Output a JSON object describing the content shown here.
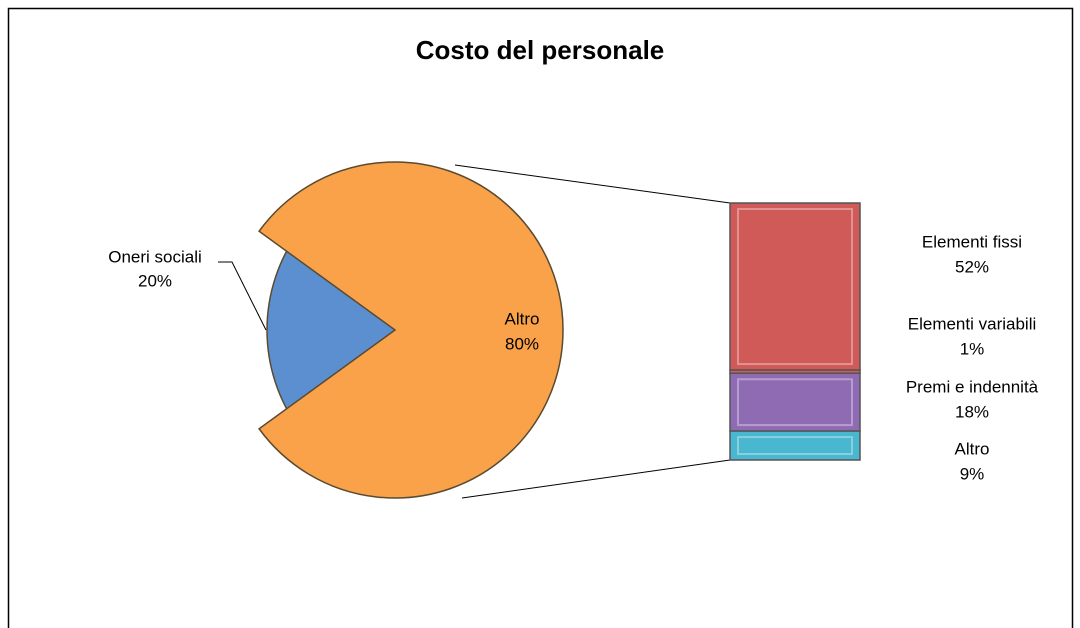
{
  "chart_data": {
    "type": "bar_of_pie",
    "title": "Costo del personale",
    "pie": {
      "categories": [
        "Oneri sociali",
        "Altro"
      ],
      "values": [
        20,
        80
      ],
      "value_labels": [
        "20%",
        "80%"
      ],
      "colors": [
        "#5b8fd0",
        "#f9a24a"
      ]
    },
    "bar": {
      "categories": [
        "Elementi fissi",
        "Elementi variabili",
        "Premi e indennità",
        "Altro"
      ],
      "values": [
        52,
        1,
        18,
        9
      ],
      "value_labels": [
        "52%",
        "1%",
        "18%",
        "9%"
      ],
      "colors": [
        "#d05a58",
        "#d05a58",
        "#8e6bb3",
        "#49b7cf"
      ]
    }
  }
}
